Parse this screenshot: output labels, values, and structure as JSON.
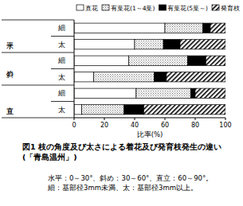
{
  "chart_data": {
    "type": "bar",
    "orientation": "horizontal",
    "stacked": true,
    "title": "図1 枝の角度及び太さによる着花及び発育枝発生の違い(「青島温州」)",
    "x_label": "比率(%)",
    "groups": [
      "水平",
      "斜め",
      "直立"
    ],
    "categories": [
      "細",
      "太",
      "細",
      "太",
      "細",
      "太"
    ],
    "series": [
      {
        "name": "直花",
        "color": "#ffffff",
        "values": [
          60,
          40,
          36,
          13,
          41,
          5
        ]
      },
      {
        "name": "有葉花(1～4葉)",
        "color": "#777777",
        "values": [
          25,
          19,
          39,
          40,
          36,
          28
        ]
      },
      {
        "name": "有葉花(5葉～)",
        "color": "#000000",
        "values": [
          5,
          11,
          12,
          8,
          3,
          13
        ]
      },
      {
        "name": "発育枝",
        "color": "#000000",
        "values": [
          10,
          30,
          13,
          39,
          20,
          54
        ]
      }
    ],
    "xlim": [
      0,
      100
    ],
    "xticks": [
      0,
      20,
      40,
      60,
      80,
      100
    ],
    "grid": false,
    "legend": "top",
    "annotations": [
      "水平：0～30°、斜め：30～60°、直立：60～90°。",
      "細：基部径3mm未満、太：基部径3mm以上。"
    ]
  }
}
